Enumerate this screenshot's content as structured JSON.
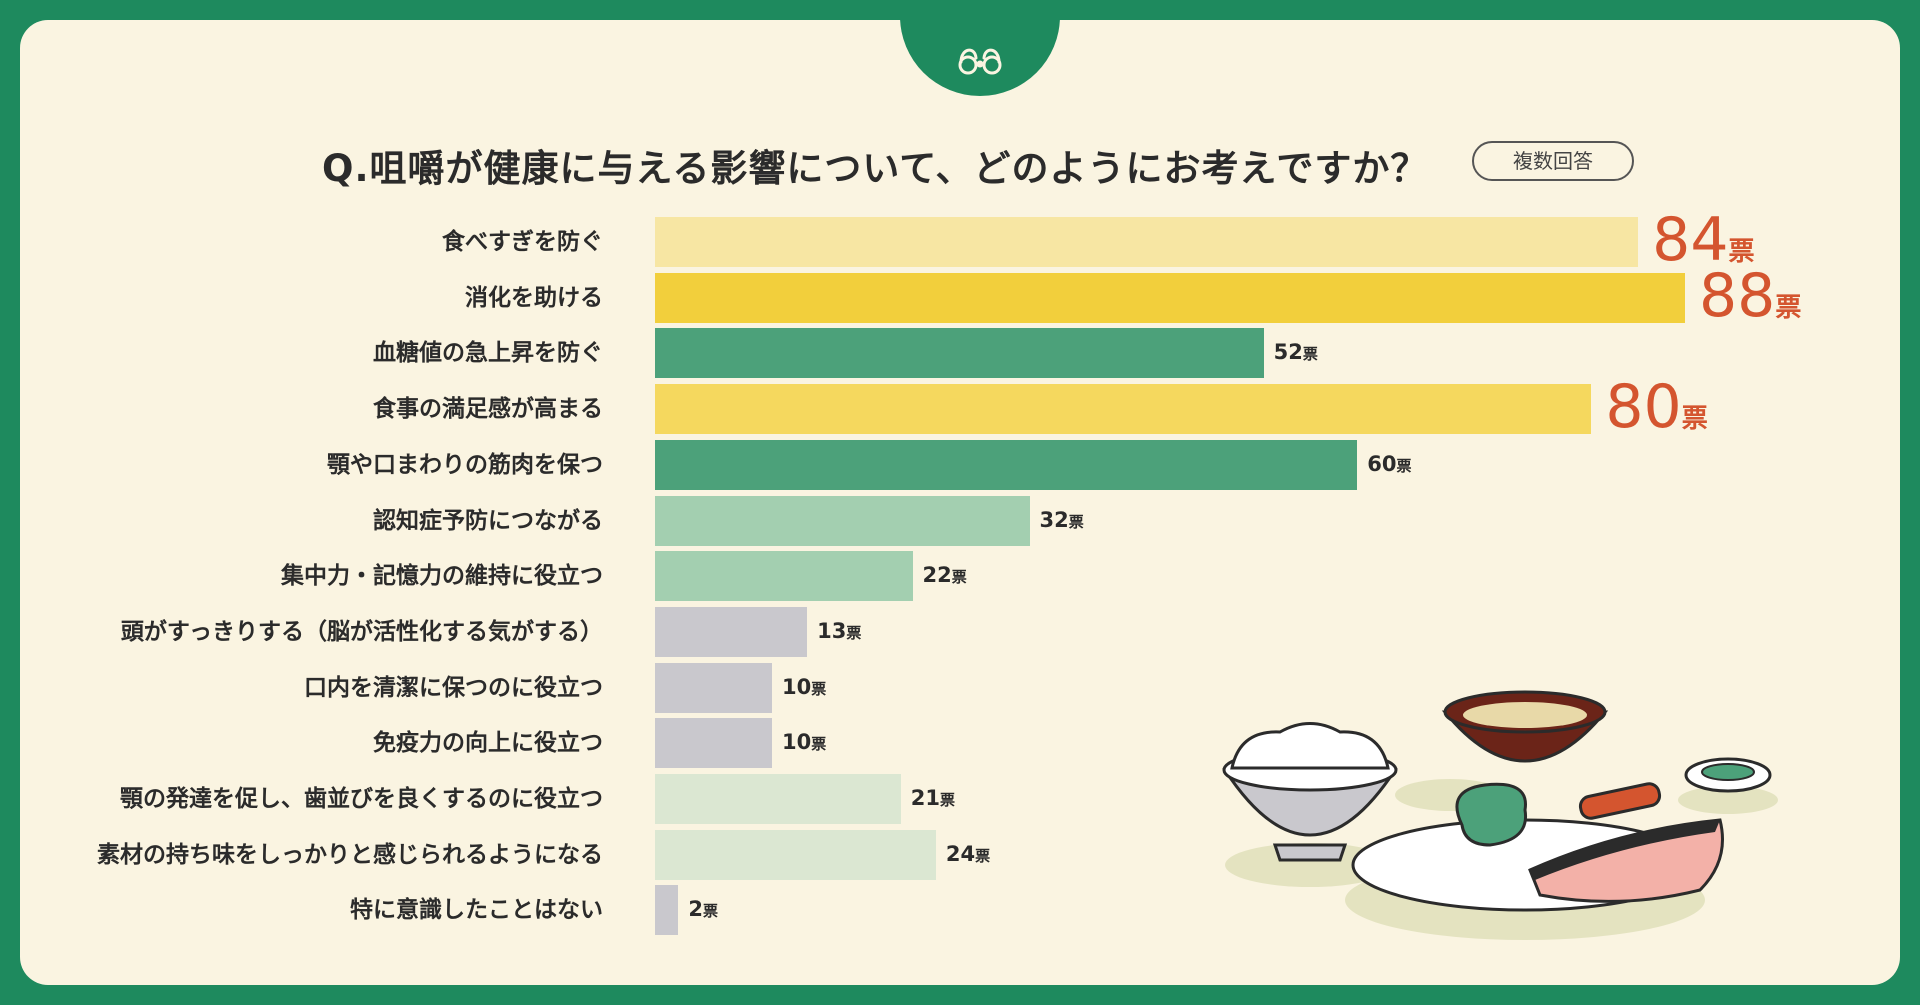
{
  "title": "Q.咀嚼が健康に与える影響について、どのようにお考えですか？",
  "badge": "複数回答",
  "chart_data": {
    "type": "bar",
    "orientation": "horizontal",
    "unit": "票",
    "categories": [
      "食べすぎを防ぐ",
      "消化を助ける",
      "血糖値の急上昇を防ぐ",
      "食事の満足感が高まる",
      "顎や口まわりの筋肉を保つ",
      "認知症予防につながる",
      "集中力・記憶力の維持に役立つ",
      "頭がすっきりする（脳が活性化する気がする）",
      "口内を清潔に保つのに役立つ",
      "免疫力の向上に役立つ",
      "顎の発達を促し、歯並びを良くするのに役立つ",
      "素材の持ち味をしっかりと感じられるようになる",
      "特に意識したことはない"
    ],
    "values": [
      84,
      88,
      52,
      80,
      60,
      32,
      22,
      13,
      10,
      10,
      21,
      24,
      2
    ],
    "bar_colors": [
      "#f7e6a3",
      "#f2cf3c",
      "#4ca17a",
      "#f5d85e",
      "#4ca17a",
      "#a3cfb0",
      "#a3cfb0",
      "#c9c8cd",
      "#c9c8cd",
      "#c9c8cd",
      "#dbe7d2",
      "#dbe7d2",
      "#c9c8cd"
    ],
    "highlight_color": "#d4552f",
    "highlight_threshold": 80,
    "xlim": [
      0,
      88
    ]
  }
}
